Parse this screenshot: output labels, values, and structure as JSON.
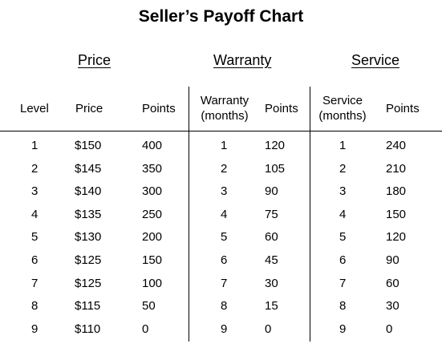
{
  "title": "Seller’s Payoff Chart",
  "groups": {
    "price": "Price",
    "warranty": "Warranty",
    "service": "Service"
  },
  "headers": {
    "level": "Level",
    "price": "Price",
    "price_points": "Points",
    "warranty_line1": "Warranty",
    "warranty_line2": "(months)",
    "warranty_points": "Points",
    "service_line1": "Service",
    "service_line2": "(months)",
    "service_points": "Points"
  },
  "rows": [
    {
      "level": "1",
      "price": "$150",
      "price_points": "400",
      "warranty_months": "1",
      "warranty_points": "120",
      "service_months": "1",
      "service_points": "240"
    },
    {
      "level": "2",
      "price": "$145",
      "price_points": "350",
      "warranty_months": "2",
      "warranty_points": "105",
      "service_months": "2",
      "service_points": "210"
    },
    {
      "level": "3",
      "price": "$140",
      "price_points": "300",
      "warranty_months": "3",
      "warranty_points": "90",
      "service_months": "3",
      "service_points": "180"
    },
    {
      "level": "4",
      "price": "$135",
      "price_points": "250",
      "warranty_months": "4",
      "warranty_points": "75",
      "service_months": "4",
      "service_points": "150"
    },
    {
      "level": "5",
      "price": "$130",
      "price_points": "200",
      "warranty_months": "5",
      "warranty_points": "60",
      "service_months": "5",
      "service_points": "120"
    },
    {
      "level": "6",
      "price": "$125",
      "price_points": "150",
      "warranty_months": "6",
      "warranty_points": "45",
      "service_months": "6",
      "service_points": "90"
    },
    {
      "level": "7",
      "price": "$125",
      "price_points": "100",
      "warranty_months": "7",
      "warranty_points": "30",
      "service_months": "7",
      "service_points": "60"
    },
    {
      "level": "8",
      "price": "$115",
      "price_points": "50",
      "warranty_months": "8",
      "warranty_points": "15",
      "service_months": "8",
      "service_points": "30"
    },
    {
      "level": "9",
      "price": "$110",
      "price_points": "0",
      "warranty_months": "9",
      "warranty_points": "0",
      "service_months": "9",
      "service_points": "0"
    }
  ]
}
